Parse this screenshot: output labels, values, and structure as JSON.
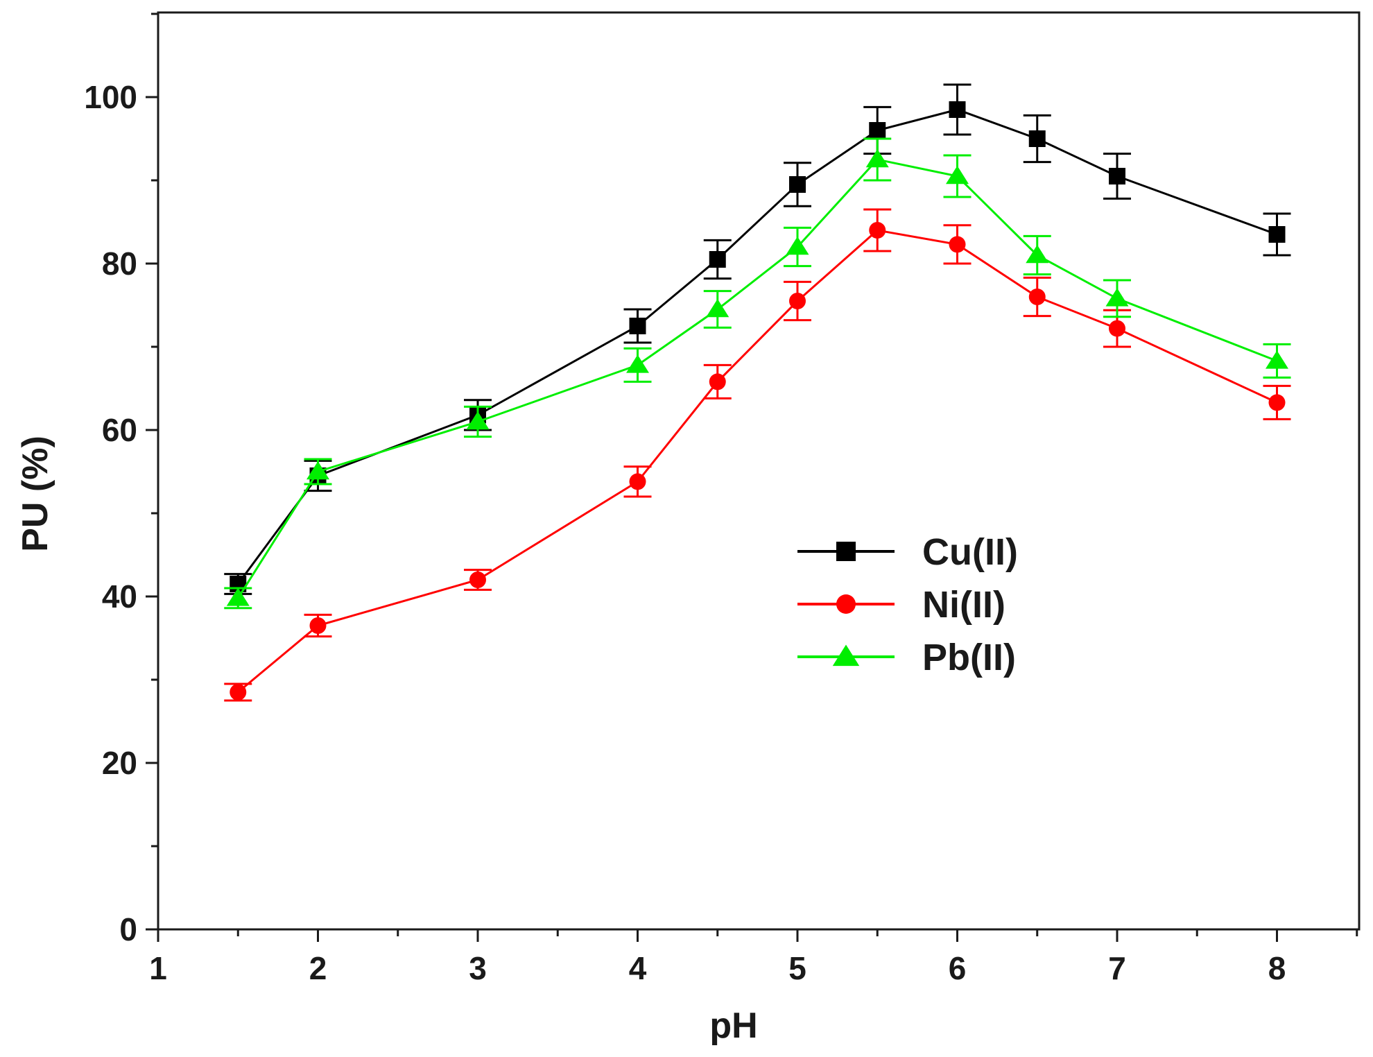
{
  "chart_data": {
    "type": "line",
    "title": "",
    "xlabel": "pH",
    "ylabel": "PU (%)",
    "xlim": [
      1,
      8.5
    ],
    "ylim": [
      0,
      110
    ],
    "x_ticks": [
      1,
      2,
      3,
      4,
      5,
      6,
      7,
      8
    ],
    "y_ticks": [
      0,
      20,
      40,
      60,
      80,
      100
    ],
    "grid": false,
    "legend_position": "center-right",
    "x": [
      1.5,
      2,
      3,
      4,
      4.5,
      5,
      5.5,
      6,
      6.5,
      7,
      8
    ],
    "series": [
      {
        "name": "Cu(II)",
        "marker": "square",
        "color": "#000000",
        "values": [
          41.5,
          54.5,
          61.8,
          72.5,
          80.5,
          89.5,
          96.0,
          98.5,
          95.0,
          90.5,
          83.5
        ],
        "errors": [
          1.2,
          1.8,
          1.8,
          2.0,
          2.3,
          2.6,
          2.8,
          3.0,
          2.8,
          2.7,
          2.5
        ]
      },
      {
        "name": "Ni(II)",
        "marker": "circle",
        "color": "#ff0000",
        "values": [
          28.5,
          36.5,
          42.0,
          53.8,
          65.8,
          75.5,
          84.0,
          82.3,
          76.0,
          72.2,
          63.3
        ],
        "errors": [
          1.0,
          1.3,
          1.2,
          1.8,
          2.0,
          2.3,
          2.5,
          2.3,
          2.3,
          2.2,
          2.0
        ]
      },
      {
        "name": "Pb(II)",
        "marker": "triangle",
        "color": "#00ee00",
        "values": [
          39.8,
          55.0,
          61.0,
          67.8,
          74.5,
          82.0,
          92.5,
          90.5,
          81.0,
          75.8,
          68.3
        ],
        "errors": [
          1.2,
          1.5,
          1.8,
          2.0,
          2.2,
          2.3,
          2.5,
          2.5,
          2.3,
          2.2,
          2.0
        ]
      }
    ]
  }
}
